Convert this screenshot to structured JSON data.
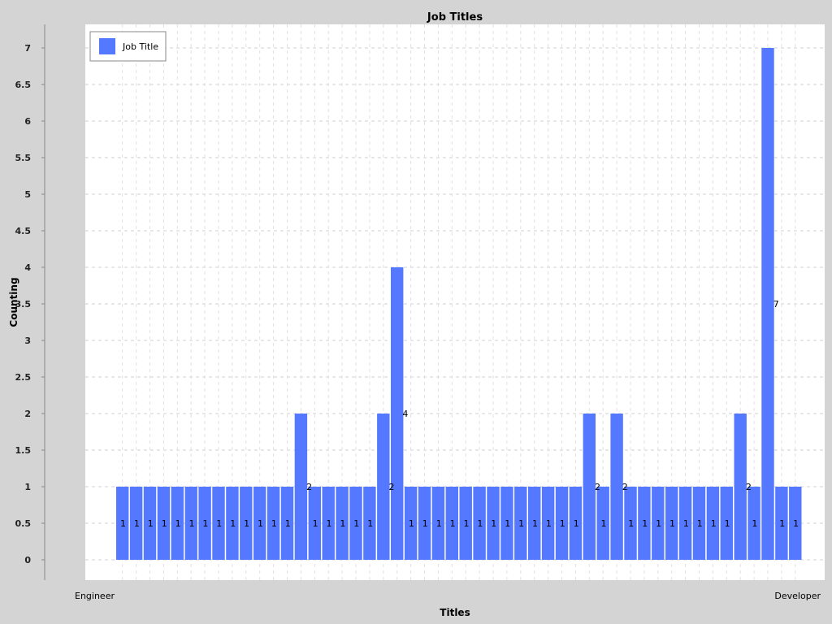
{
  "chart_data": {
    "type": "bar",
    "title": "Job Titles",
    "xlabel": "Titles",
    "ylabel": "Counting",
    "legend": {
      "label": "Job Title",
      "position": "top-left"
    },
    "ylim": [
      0,
      7
    ],
    "yticks": [
      0,
      0.5,
      1,
      1.5,
      2,
      2.5,
      3,
      3.5,
      4,
      4.5,
      5,
      5.5,
      6,
      6.5,
      7
    ],
    "ytick_labels": [
      "0",
      "0.5",
      "1",
      "1.5",
      "2",
      "2.5",
      "3",
      "3.5",
      "4",
      "4.5",
      "5",
      "5.5",
      "6",
      "6.5",
      "7"
    ],
    "grid": true,
    "bar_color": "#5478ff",
    "categories": [
      "Engineer",
      "",
      "",
      "",
      "",
      "",
      "",
      "",
      "",
      "",
      "",
      "",
      "",
      "",
      "",
      "",
      "",
      "",
      "",
      "",
      "",
      "",
      "",
      "",
      "",
      "",
      "",
      "",
      "",
      "",
      "",
      "",
      "",
      "",
      "",
      "",
      "",
      "",
      "",
      "",
      "",
      "",
      "",
      "",
      "",
      "",
      "",
      "",
      "",
      "Developer"
    ],
    "values": [
      1,
      1,
      1,
      1,
      1,
      1,
      1,
      1,
      1,
      1,
      1,
      1,
      1,
      2,
      1,
      1,
      1,
      1,
      1,
      2,
      4,
      1,
      1,
      1,
      1,
      1,
      1,
      1,
      1,
      1,
      1,
      1,
      1,
      1,
      2,
      1,
      2,
      1,
      1,
      1,
      1,
      1,
      1,
      1,
      1,
      2,
      1,
      7,
      1,
      1
    ],
    "value_labels": [
      "1",
      "1",
      "1",
      "1",
      "1",
      "1",
      "1",
      "1",
      "1",
      "1",
      "1",
      "1",
      "1",
      "2",
      "1",
      "1",
      "1",
      "1",
      "1",
      "2",
      "4",
      "1",
      "1",
      "1",
      "1",
      "1",
      "1",
      "1",
      "1",
      "1",
      "1",
      "1",
      "1",
      "1",
      "2",
      "1",
      "2",
      "1",
      "1",
      "1",
      "1",
      "1",
      "1",
      "1",
      "1",
      "2",
      "1",
      "7",
      "1",
      "1"
    ]
  }
}
